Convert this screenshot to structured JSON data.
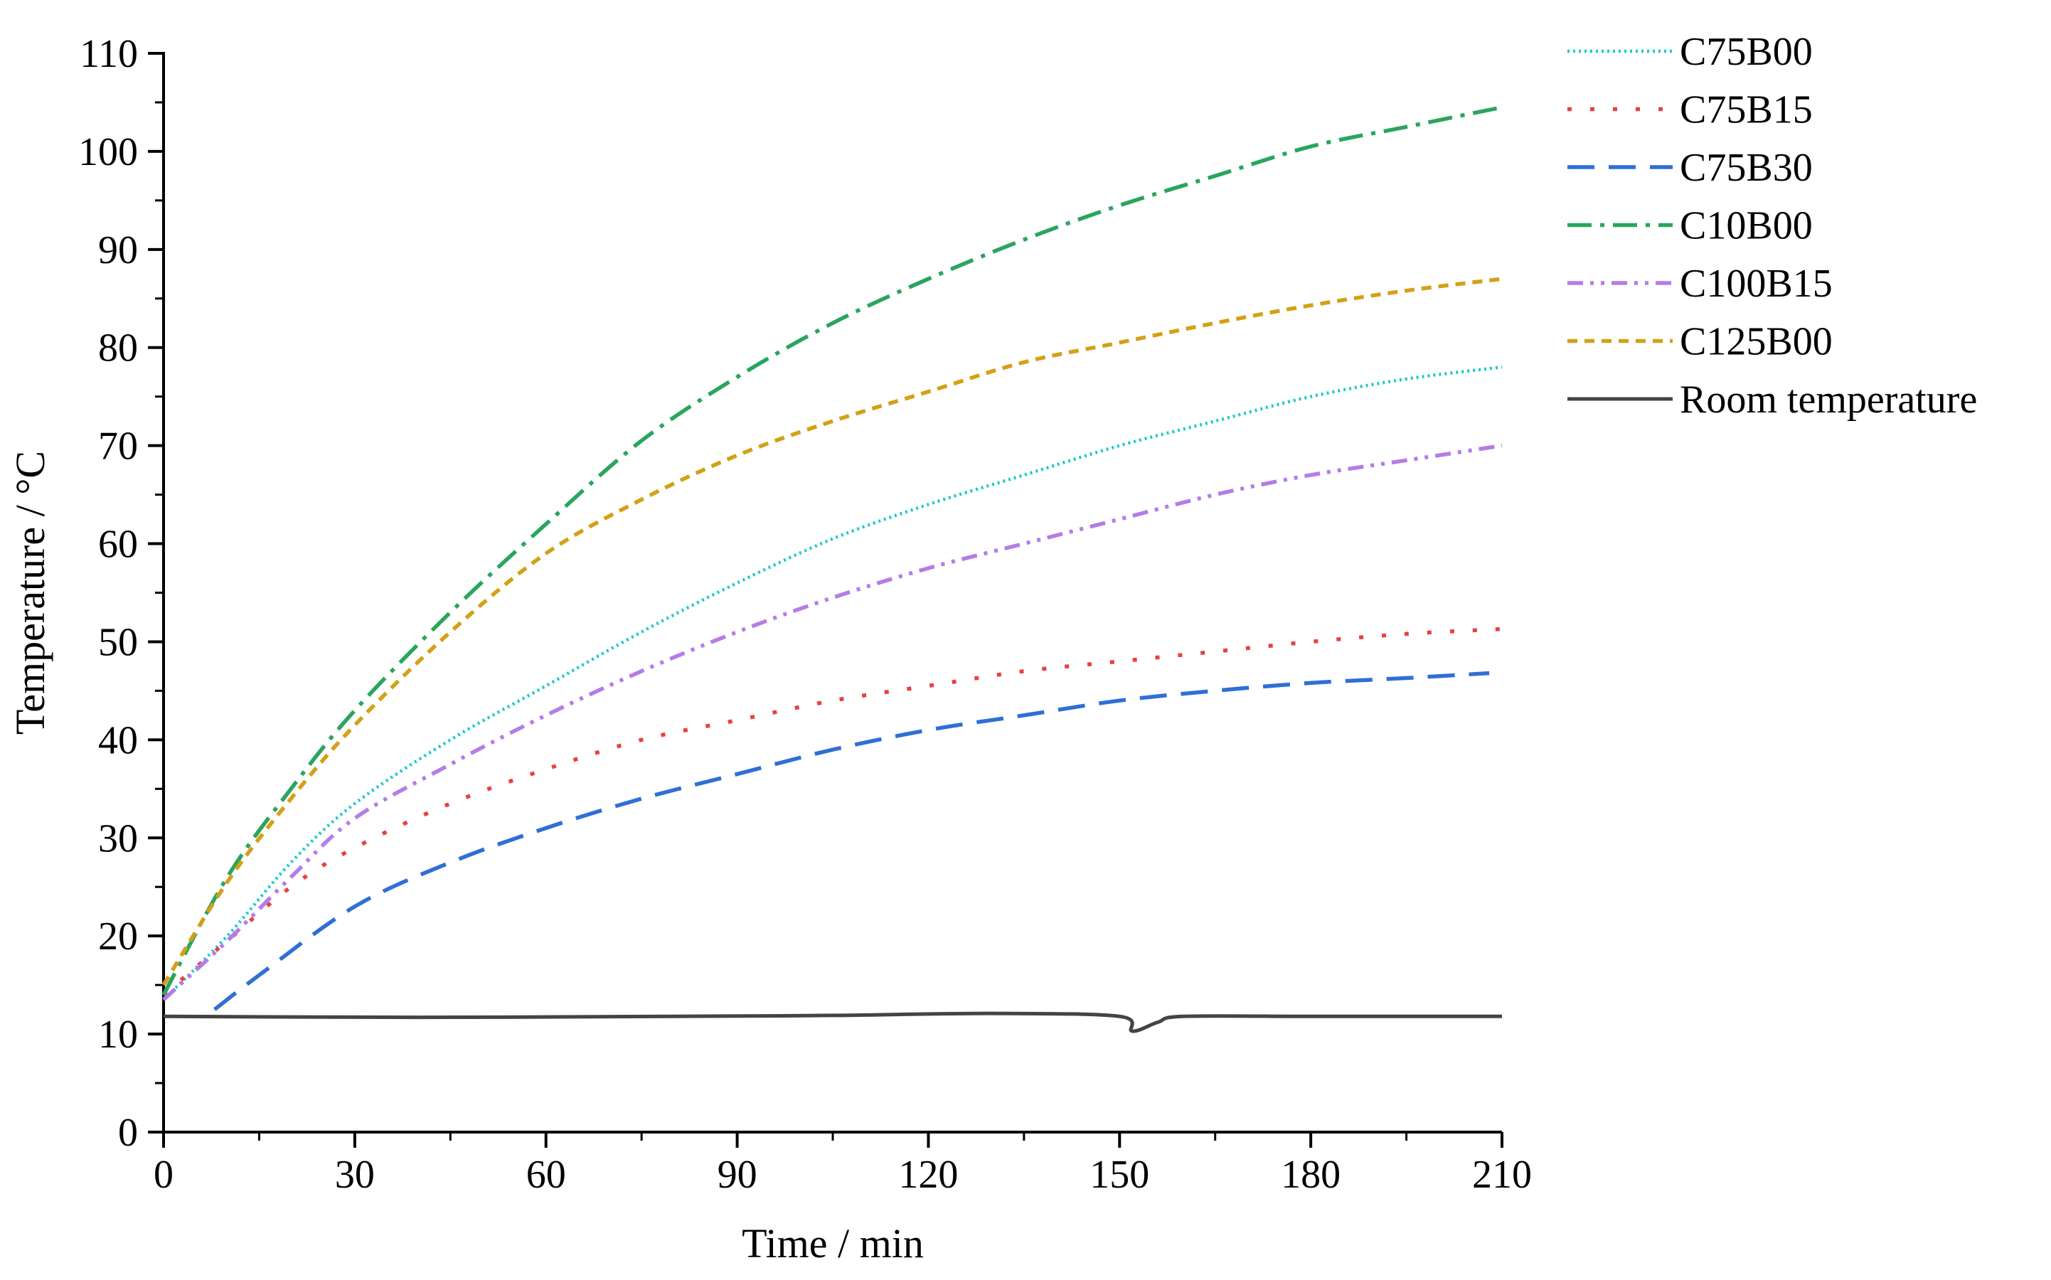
{
  "chart_data": {
    "type": "line",
    "title": "",
    "xlabel": "Time / min",
    "ylabel": "Temperature / °C",
    "xlim": [
      0,
      210
    ],
    "ylim": [
      0,
      110
    ],
    "xticks": [
      0,
      30,
      60,
      90,
      120,
      150,
      180,
      210
    ],
    "yticks": [
      0,
      10,
      20,
      30,
      40,
      50,
      60,
      70,
      80,
      90,
      100,
      110
    ],
    "grid": false,
    "legend_position": "top-right, outside plot",
    "series": [
      {
        "name": "C75B00",
        "color": "#1fc9c9",
        "style": "dotted",
        "x": [
          0,
          10,
          20,
          30,
          45,
          60,
          75,
          90,
          105,
          120,
          135,
          150,
          165,
          180,
          195,
          210
        ],
        "y": [
          13.5,
          20,
          27.5,
          33.5,
          40,
          45.5,
          51,
          56,
          60.5,
          64,
          67,
          70,
          72.5,
          75,
          76.8,
          78
        ]
      },
      {
        "name": "C75B15",
        "color": "#e8413f",
        "style": "sparse-dotted",
        "x": [
          0,
          10,
          20,
          30,
          45,
          60,
          75,
          90,
          105,
          120,
          135,
          150,
          165,
          180,
          195,
          210
        ],
        "y": [
          14,
          19.5,
          25,
          29,
          33.5,
          37,
          40,
          42,
          44,
          45.5,
          47,
          48,
          49,
          50,
          50.8,
          51.3
        ]
      },
      {
        "name": "C75B30",
        "color": "#2f6fd6",
        "style": "long-dash",
        "x": [
          8,
          15,
          30,
          45,
          60,
          75,
          90,
          105,
          120,
          135,
          150,
          165,
          180,
          195,
          208
        ],
        "y": [
          12.5,
          16,
          23,
          27.5,
          31,
          34,
          36.5,
          39,
          41,
          42.5,
          44,
          45,
          45.8,
          46.3,
          46.8
        ]
      },
      {
        "name": "C10B00",
        "color": "#2aa55e",
        "style": "dash-dot",
        "x": [
          0,
          10,
          20,
          30,
          45,
          60,
          75,
          90,
          105,
          120,
          135,
          150,
          165,
          180,
          195,
          210
        ],
        "y": [
          14,
          26,
          35,
          43,
          53,
          62,
          70.5,
          77,
          82.5,
          87,
          91,
          94.5,
          97.5,
          100.5,
          102.5,
          104.5
        ]
      },
      {
        "name": "C100B15",
        "color": "#b57ce6",
        "style": "dash-dot-dot",
        "x": [
          0,
          10,
          20,
          30,
          45,
          60,
          75,
          90,
          105,
          120,
          135,
          150,
          165,
          180,
          195,
          210
        ],
        "y": [
          13.5,
          19.5,
          26,
          32,
          37.5,
          42.5,
          47,
          51,
          54.5,
          57.5,
          60,
          62.5,
          65,
          67,
          68.5,
          70
        ]
      },
      {
        "name": "C125B00",
        "color": "#d4a017",
        "style": "short-dash",
        "x": [
          0,
          10,
          20,
          30,
          45,
          60,
          75,
          90,
          105,
          120,
          135,
          150,
          165,
          180,
          195,
          210
        ],
        "y": [
          15,
          25.5,
          34,
          41.5,
          51,
          59,
          64.5,
          69,
          72.5,
          75.5,
          78.5,
          80.5,
          82.5,
          84.3,
          85.8,
          87
        ]
      },
      {
        "name": "Room temperature",
        "color": "#444444",
        "style": "solid",
        "x": [
          0,
          40,
          80,
          105,
          130,
          150,
          152,
          156,
          160,
          180,
          210
        ],
        "y": [
          11.8,
          11.7,
          11.8,
          11.9,
          12.1,
          11.8,
          10.3,
          11.2,
          11.8,
          11.8,
          11.8
        ]
      }
    ]
  }
}
